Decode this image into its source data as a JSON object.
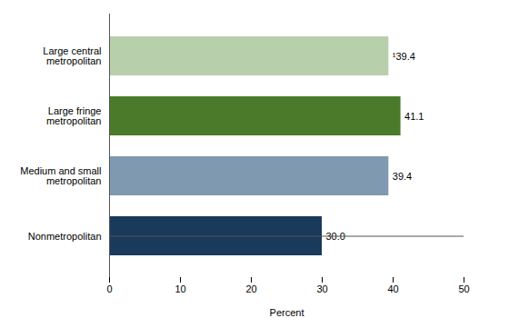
{
  "chart_data": {
    "type": "bar",
    "orientation": "horizontal",
    "categories": [
      "Nonmetropolitan",
      "Medium and small\nmetropolitan",
      "Large fringe\nmetropolitan",
      "Large central\nmetropolitan"
    ],
    "values": [
      30.0,
      39.4,
      41.1,
      39.4
    ],
    "value_labels": [
      "30.0",
      "39.4",
      "41.1",
      "¹39.4"
    ],
    "colors": [
      "#1a3a5c",
      "#7f99b0",
      "#4a7a2a",
      "#b8cfab"
    ],
    "xlabel": "Percent",
    "xlim": [
      0,
      50
    ],
    "xticks": [
      0,
      10,
      20,
      30,
      40,
      50
    ],
    "data_labels": true
  }
}
